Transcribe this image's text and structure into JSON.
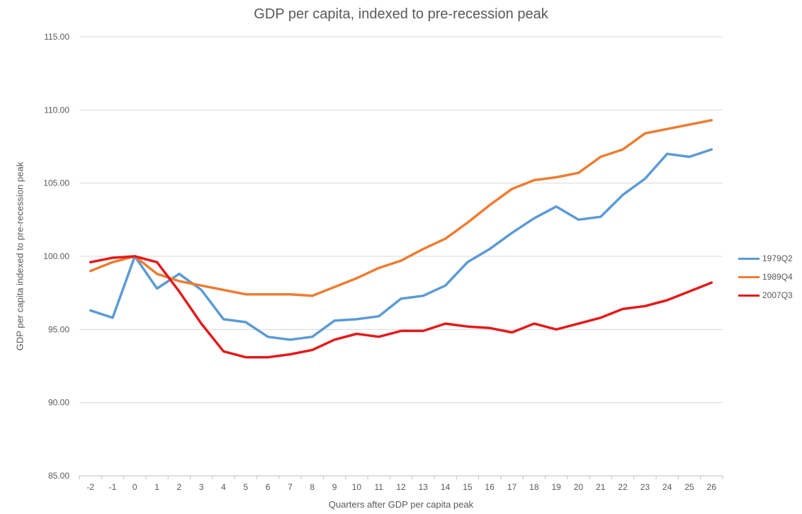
{
  "chart_data": {
    "type": "line",
    "title": "GDP per capita, indexed to pre-recession peak",
    "xlabel": "Quarters after GDP per capita peak",
    "ylabel": "GDP per capita indexed to pre-recession peak",
    "x": [
      -2,
      -1,
      0,
      1,
      2,
      3,
      4,
      5,
      6,
      7,
      8,
      9,
      10,
      11,
      12,
      13,
      14,
      15,
      16,
      17,
      18,
      19,
      20,
      21,
      22,
      23,
      24,
      25,
      26
    ],
    "x_tick_labels": [
      "-2",
      "-1",
      "0",
      "1",
      "2",
      "3",
      "4",
      "5",
      "6",
      "7",
      "8",
      "9",
      "10",
      "11",
      "12",
      "13",
      "14",
      "15",
      "16",
      "17",
      "18",
      "19",
      "20",
      "21",
      "22",
      "23",
      "24",
      "25",
      "26"
    ],
    "ylim": [
      85,
      115
    ],
    "y_ticks": [
      85,
      90,
      95,
      100,
      105,
      110,
      115
    ],
    "y_tick_labels": [
      "85.00",
      "90.00",
      "95.00",
      "100.00",
      "105.00",
      "110.00",
      "115.00"
    ],
    "grid": true,
    "legend_position": "right",
    "series": [
      {
        "name": "1979Q2",
        "color": "#5B9BD5",
        "values": [
          96.3,
          95.8,
          100.0,
          97.8,
          98.8,
          97.7,
          95.7,
          95.5,
          94.5,
          94.3,
          94.5,
          95.6,
          95.7,
          95.9,
          97.1,
          97.3,
          98.0,
          99.6,
          100.5,
          101.6,
          102.6,
          103.4,
          102.5,
          102.7,
          104.2,
          105.3,
          107.0,
          106.8,
          107.3
        ]
      },
      {
        "name": "1989Q4",
        "color": "#ED7D31",
        "values": [
          99.0,
          99.6,
          100.0,
          98.8,
          98.3,
          98.0,
          97.7,
          97.4,
          97.4,
          97.4,
          97.3,
          97.9,
          98.5,
          99.2,
          99.7,
          100.5,
          101.2,
          102.3,
          103.5,
          104.6,
          105.2,
          105.4,
          105.7,
          106.8,
          107.3,
          108.4,
          108.7,
          109.0,
          109.3
        ]
      },
      {
        "name": "2007Q3",
        "color": "#E31A1C",
        "values": [
          99.6,
          99.9,
          100.0,
          99.6,
          97.6,
          95.4,
          93.5,
          93.1,
          93.1,
          93.3,
          93.6,
          94.3,
          94.7,
          94.5,
          94.9,
          94.9,
          95.4,
          95.2,
          95.1,
          94.8,
          95.4,
          95.0,
          95.4,
          95.8,
          96.4,
          96.6,
          97.0,
          97.6,
          98.2
        ]
      }
    ]
  }
}
